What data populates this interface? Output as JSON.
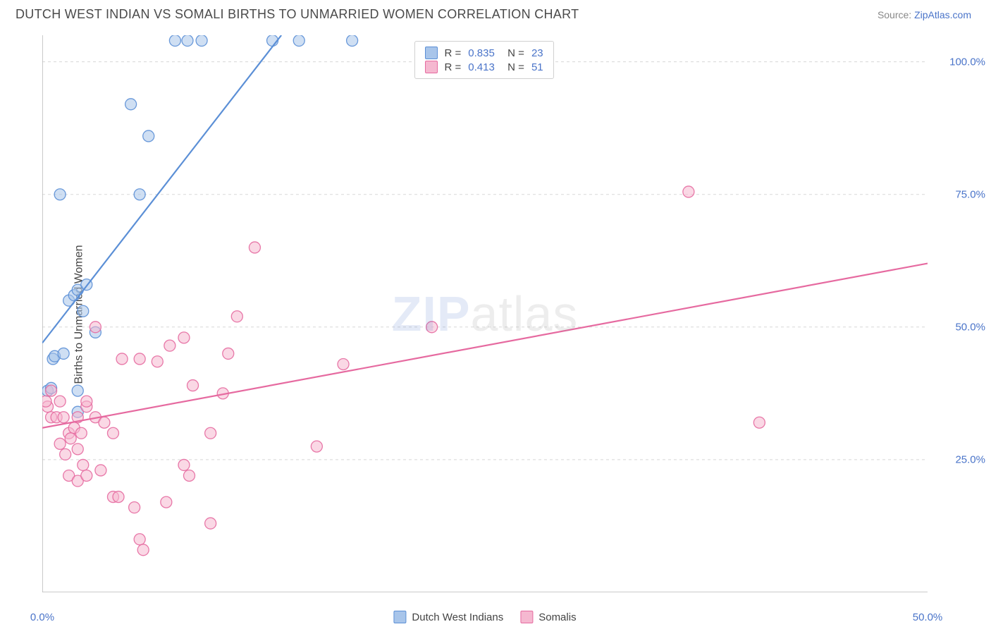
{
  "header": {
    "title": "DUTCH WEST INDIAN VS SOMALI BIRTHS TO UNMARRIED WOMEN CORRELATION CHART",
    "source_prefix": "Source: ",
    "source_name": "ZipAtlas.com"
  },
  "ylabel": "Births to Unmarried Women",
  "chart": {
    "type": "scatter",
    "xlim": [
      0,
      50
    ],
    "ylim": [
      0,
      105
    ],
    "x_ticks": [
      0,
      50
    ],
    "x_tick_labels": [
      "0.0%",
      "50.0%"
    ],
    "x_minor_ticks": [
      5,
      10,
      20,
      30,
      40
    ],
    "y_ticks": [
      25,
      50,
      75,
      100
    ],
    "y_tick_labels": [
      "25.0%",
      "50.0%",
      "75.0%",
      "100.0%"
    ],
    "grid_color": "#d8d8d8",
    "axis_color": "#b8b8b8",
    "background_color": "#ffffff",
    "marker_radius": 8,
    "marker_opacity": 0.55,
    "line_width": 2.2,
    "series": [
      {
        "name": "Dutch West Indians",
        "color_stroke": "#5b8fd6",
        "color_fill": "#a8c5ea",
        "R": "0.835",
        "N": "23",
        "trend": {
          "x0": 0,
          "y0": 47,
          "x1": 13.5,
          "y1": 105
        },
        "points": [
          [
            0.3,
            38
          ],
          [
            0.5,
            38.5
          ],
          [
            0.6,
            44
          ],
          [
            0.7,
            44.5
          ],
          [
            1.2,
            45
          ],
          [
            1.5,
            55
          ],
          [
            1.8,
            56
          ],
          [
            2.0,
            57
          ],
          [
            2.3,
            53
          ],
          [
            2.5,
            58
          ],
          [
            3.0,
            49
          ],
          [
            2.0,
            38
          ],
          [
            1.0,
            75
          ],
          [
            5.5,
            75
          ],
          [
            5.0,
            92
          ],
          [
            6.0,
            86
          ],
          [
            7.5,
            104
          ],
          [
            8.2,
            104
          ],
          [
            9.0,
            104
          ],
          [
            13.0,
            104
          ],
          [
            14.5,
            104
          ],
          [
            17.5,
            104
          ],
          [
            2.0,
            34
          ]
        ]
      },
      {
        "name": "Somalis",
        "color_stroke": "#e66aa0",
        "color_fill": "#f5b8d0",
        "R": "0.413",
        "N": "51",
        "trend": {
          "x0": 0,
          "y0": 31,
          "x1": 50,
          "y1": 62
        },
        "points": [
          [
            0.3,
            35
          ],
          [
            0.5,
            33
          ],
          [
            0.8,
            33
          ],
          [
            1.0,
            36
          ],
          [
            1.2,
            33
          ],
          [
            1.5,
            30
          ],
          [
            1.8,
            31
          ],
          [
            2.0,
            33
          ],
          [
            2.2,
            30
          ],
          [
            2.5,
            35
          ],
          [
            1.0,
            28
          ],
          [
            1.3,
            26
          ],
          [
            1.6,
            29
          ],
          [
            2.0,
            27
          ],
          [
            2.3,
            24
          ],
          [
            1.5,
            22
          ],
          [
            2.0,
            21
          ],
          [
            2.5,
            22
          ],
          [
            3.3,
            23
          ],
          [
            4.0,
            18
          ],
          [
            4.3,
            18
          ],
          [
            5.2,
            16
          ],
          [
            5.5,
            10
          ],
          [
            7.0,
            17
          ],
          [
            9.5,
            13
          ],
          [
            5.7,
            8
          ],
          [
            3.0,
            33
          ],
          [
            3.5,
            32
          ],
          [
            4.0,
            30
          ],
          [
            4.5,
            44
          ],
          [
            5.5,
            44
          ],
          [
            6.5,
            43.5
          ],
          [
            7.2,
            46.5
          ],
          [
            8.0,
            48
          ],
          [
            8.5,
            39
          ],
          [
            9.5,
            30
          ],
          [
            10.2,
            37.5
          ],
          [
            10.5,
            45
          ],
          [
            11.0,
            52
          ],
          [
            12.0,
            65
          ],
          [
            8.0,
            24
          ],
          [
            8.3,
            22
          ],
          [
            15.5,
            27.5
          ],
          [
            17.0,
            43
          ],
          [
            22.0,
            50
          ],
          [
            3.0,
            50
          ],
          [
            2.5,
            36
          ],
          [
            36.5,
            75.5
          ],
          [
            40.5,
            32
          ],
          [
            0.5,
            38
          ],
          [
            0.2,
            36
          ]
        ]
      }
    ]
  },
  "x_legend": [
    {
      "label": "Dutch West Indians",
      "stroke": "#5b8fd6",
      "fill": "#a8c5ea"
    },
    {
      "label": "Somalis",
      "stroke": "#e66aa0",
      "fill": "#f5b8d0"
    }
  ],
  "watermark": {
    "a": "ZIP",
    "b": "atlas"
  }
}
